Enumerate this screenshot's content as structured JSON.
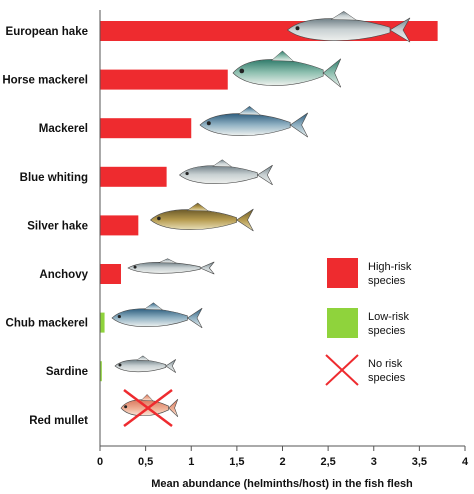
{
  "chart_data": {
    "type": "bar",
    "orientation": "horizontal",
    "categories": [
      "European hake",
      "Horse mackerel",
      "Mackerel",
      "Blue whiting",
      "Silver hake",
      "Anchovy",
      "Chub mackerel",
      "Sardine",
      "Red mullet"
    ],
    "values": [
      3.7,
      1.4,
      1.0,
      0.73,
      0.42,
      0.23,
      0.05,
      0.02,
      0.0
    ],
    "risk": [
      "high",
      "high",
      "high",
      "high",
      "high",
      "high",
      "low",
      "low",
      "none"
    ],
    "xlabel": "Mean abundance (helminths/host) in the fish flesh",
    "xlim": [
      0,
      4
    ],
    "xticks": [
      "0",
      "0,5",
      "1",
      "1,5",
      "2",
      "2,5",
      "3",
      "3,5",
      "4"
    ],
    "grid": false,
    "legend": {
      "placement": "right",
      "entries": [
        {
          "key": "high",
          "line1": "High-risk",
          "line2": "species",
          "color": "#ee2b2f"
        },
        {
          "key": "low",
          "line1": "Low-risk",
          "line2": "species",
          "color": "#8fd33c"
        },
        {
          "key": "none",
          "line1": "No risk",
          "line2": "species",
          "color": "#ee2b2f"
        }
      ]
    },
    "fish_icons": [
      "hake-fish-icon",
      "horse-mackerel-fish-icon",
      "mackerel-fish-icon",
      "blue-whiting-fish-icon",
      "silver-hake-fish-icon",
      "anchovy-fish-icon",
      "chub-mackerel-fish-icon",
      "sardine-fish-icon",
      "red-mullet-fish-icon"
    ],
    "colors": {
      "high": "#ee2b2f",
      "low": "#8fd33c",
      "none_cross": "#ee2b2f",
      "axis": "#555555"
    }
  }
}
